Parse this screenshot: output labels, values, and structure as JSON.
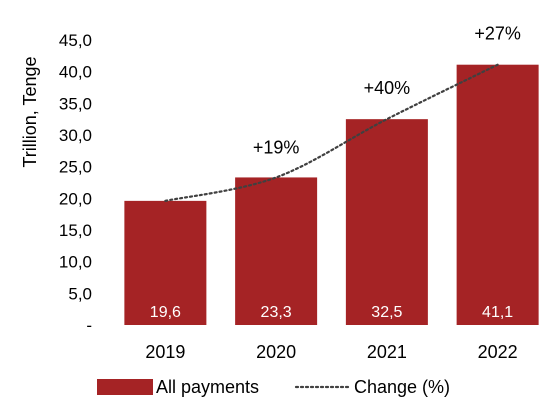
{
  "chart_data": {
    "type": "bar",
    "title": "",
    "xlabel": "",
    "ylabel": "Trillion, Tenge",
    "categories": [
      "2019",
      "2020",
      "2021",
      "2022"
    ],
    "ylim": [
      0,
      45
    ],
    "y_ticks": [
      "-",
      "5,0",
      "10,0",
      "15,0",
      "20,0",
      "25,0",
      "30,0",
      "35,0",
      "40,0",
      "45,0"
    ],
    "y_tick_values": [
      0,
      5,
      10,
      15,
      20,
      25,
      30,
      35,
      40,
      45
    ],
    "grid": false,
    "legend_position": "bottom",
    "series": [
      {
        "name": "All payments",
        "type": "bar",
        "values": [
          19.6,
          23.3,
          32.5,
          41.1
        ],
        "labels": [
          "19,6",
          "23,3",
          "32,5",
          "41,1"
        ],
        "color": "#A52325"
      },
      {
        "name": "Change (%)",
        "type": "line",
        "style": "dotted",
        "values": [
          19.6,
          23.3,
          32.5,
          41.1
        ],
        "labels": [
          "",
          "+19%",
          "+40%",
          "+27%"
        ],
        "color": "#404040"
      }
    ]
  }
}
